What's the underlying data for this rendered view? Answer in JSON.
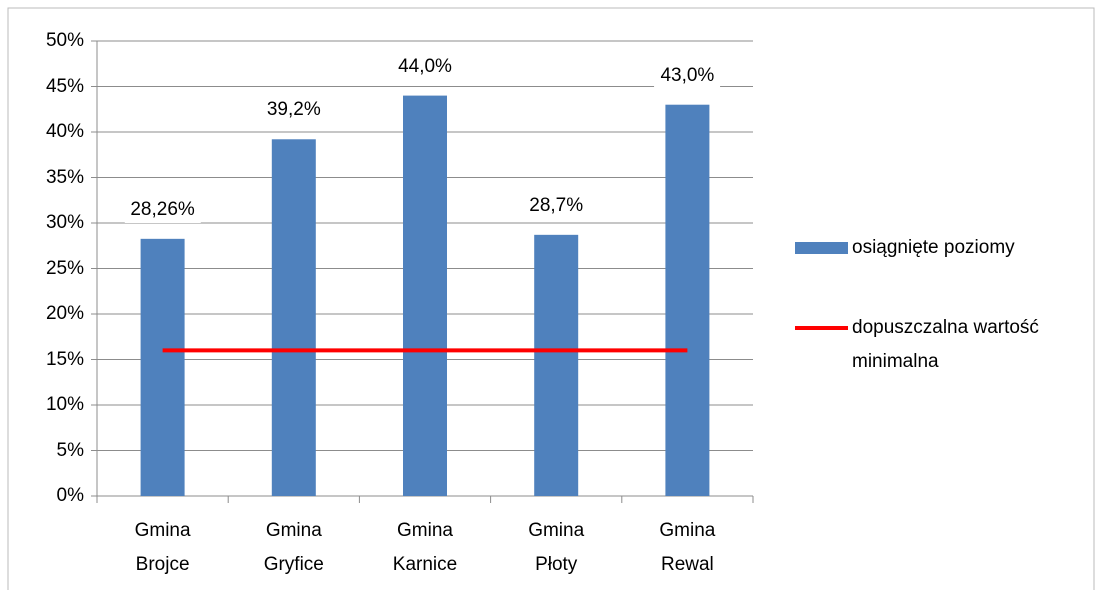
{
  "chart_data": {
    "type": "bar",
    "categories": [
      "Gmina Brojce",
      "Gmina Gryfice",
      "Gmina Karnice",
      "Gmina Płoty",
      "Gmina Rewal"
    ],
    "series": [
      {
        "name": "osiągnięte poziomy",
        "type": "bar",
        "color": "#4f81bd",
        "values": [
          28.26,
          39.2,
          44.0,
          28.7,
          43.0
        ],
        "value_labels": [
          "28,26%",
          "39,2%",
          "44,0%",
          "28,7%",
          "43,0%"
        ]
      },
      {
        "name": "dopuszczalna wartość minimalna",
        "type": "line",
        "color": "#ff0000",
        "values": [
          16,
          16,
          16,
          16,
          16
        ]
      }
    ],
    "ylim": [
      0,
      50
    ],
    "yticks": [
      {
        "value": 0,
        "label": "0%"
      },
      {
        "value": 5,
        "label": "5%"
      },
      {
        "value": 10,
        "label": "10%"
      },
      {
        "value": 15,
        "label": "15%"
      },
      {
        "value": 20,
        "label": "20%"
      },
      {
        "value": 25,
        "label": "25%"
      },
      {
        "value": 30,
        "label": "30%"
      },
      {
        "value": 35,
        "label": "35%"
      },
      {
        "value": 40,
        "label": "40%"
      },
      {
        "value": 45,
        "label": "45%"
      },
      {
        "value": 50,
        "label": "50%"
      }
    ],
    "grid": true,
    "legend": "right"
  }
}
